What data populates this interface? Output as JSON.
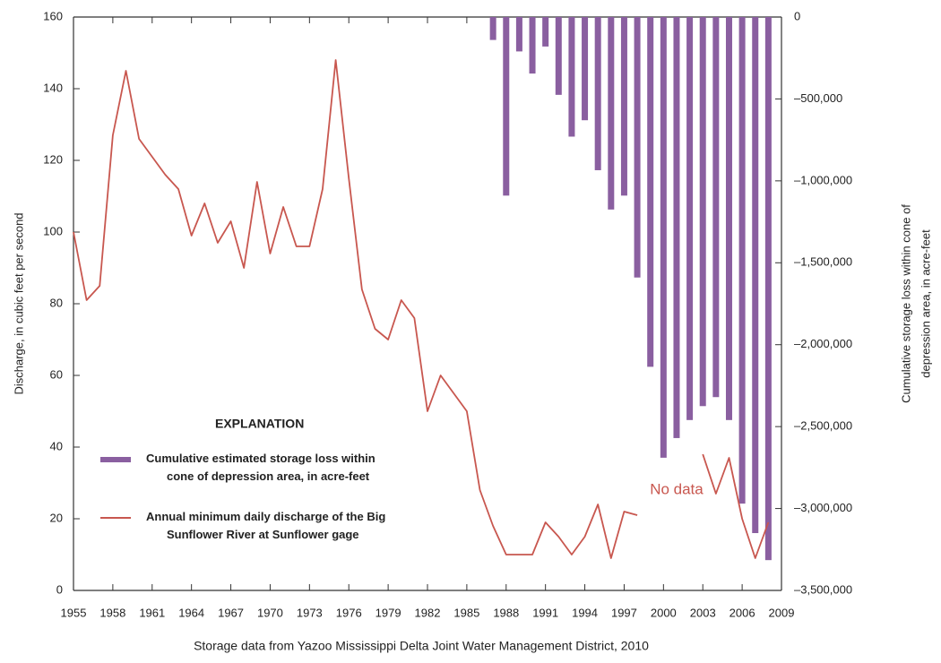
{
  "chart_data": {
    "type": "bar-line",
    "y_label": "Discharge, in cubic feet per second",
    "y2_label": [
      "Cumulative storage loss within cone of",
      "depression area, in acre-feet"
    ],
    "caption": "Storage data from Yazoo Mississippi Delta Joint Water Management District, 2010",
    "legend_title": "EXPLANATION",
    "annotations": [
      {
        "text": "No data",
        "x": 2001,
        "y": 28
      }
    ],
    "x": [
      1955,
      1956,
      1957,
      1958,
      1959,
      1960,
      1961,
      1962,
      1963,
      1964,
      1965,
      1966,
      1967,
      1968,
      1969,
      1970,
      1971,
      1972,
      1973,
      1974,
      1975,
      1976,
      1977,
      1978,
      1979,
      1980,
      1981,
      1982,
      1983,
      1984,
      1985,
      1986,
      1987,
      1988,
      1989,
      1990,
      1991,
      1992,
      1993,
      1994,
      1995,
      1996,
      1997,
      1998,
      1999,
      2000,
      2001,
      2002,
      2003,
      2004,
      2005,
      2006,
      2007,
      2008
    ],
    "series": [
      {
        "name": "Cumulative estimated storage loss within\ncone of depression area, in acre-feet",
        "type": "bar",
        "axis": "y2",
        "color": "#8a5fa0",
        "values": [
          null,
          null,
          null,
          null,
          null,
          null,
          null,
          null,
          null,
          null,
          null,
          null,
          null,
          null,
          null,
          null,
          null,
          null,
          null,
          null,
          null,
          null,
          null,
          null,
          null,
          null,
          null,
          null,
          null,
          null,
          null,
          null,
          -140000,
          -1090000,
          -210000,
          -345000,
          -180000,
          -475000,
          -730000,
          -630000,
          -935000,
          -1175000,
          -1090000,
          -1590000,
          -2135000,
          -2690000,
          -2570000,
          -2460000,
          -2375000,
          -2320000,
          -2460000,
          -2970000,
          -3150000,
          -3315000
        ]
      },
      {
        "name": "Annual minimum daily discharge of the Big\nSunflower River at Sunflower gage",
        "type": "line",
        "color": "#c8574f",
        "values": [
          100,
          81,
          85,
          127,
          145,
          126,
          121,
          116,
          112,
          99,
          108,
          97,
          103,
          90,
          114,
          94,
          107,
          96,
          96,
          112,
          148,
          115,
          84,
          73,
          70,
          81,
          76,
          50,
          60,
          55,
          50,
          28,
          18,
          10,
          10,
          10,
          19,
          15,
          10,
          15,
          24,
          9,
          22,
          21,
          null,
          null,
          null,
          null,
          38,
          27,
          37,
          20,
          9,
          19
        ]
      }
    ],
    "xlim": [
      1955,
      2009
    ],
    "xticks": [
      1955,
      1958,
      1961,
      1964,
      1967,
      1970,
      1973,
      1976,
      1979,
      1982,
      1985,
      1988,
      1991,
      1994,
      1997,
      2000,
      2003,
      2006,
      2009
    ],
    "ylim": [
      0,
      160
    ],
    "yticks": [
      0,
      20,
      40,
      60,
      80,
      100,
      120,
      140,
      160
    ],
    "y2lim": [
      -3500000,
      0
    ],
    "y2ticks": [
      0,
      {
        "value": -500000,
        "label": "–500,000"
      },
      {
        "value": -1000000,
        "label": "–1,000,000"
      },
      {
        "value": -1500000,
        "label": "–1,500,000"
      },
      {
        "value": -2000000,
        "label": "–2,000,000"
      },
      {
        "value": -2500000,
        "label": "–2,500,000"
      },
      {
        "value": -3000000,
        "label": "–3,000,000"
      },
      {
        "value": -3500000,
        "label": "–3,500,000"
      }
    ]
  }
}
